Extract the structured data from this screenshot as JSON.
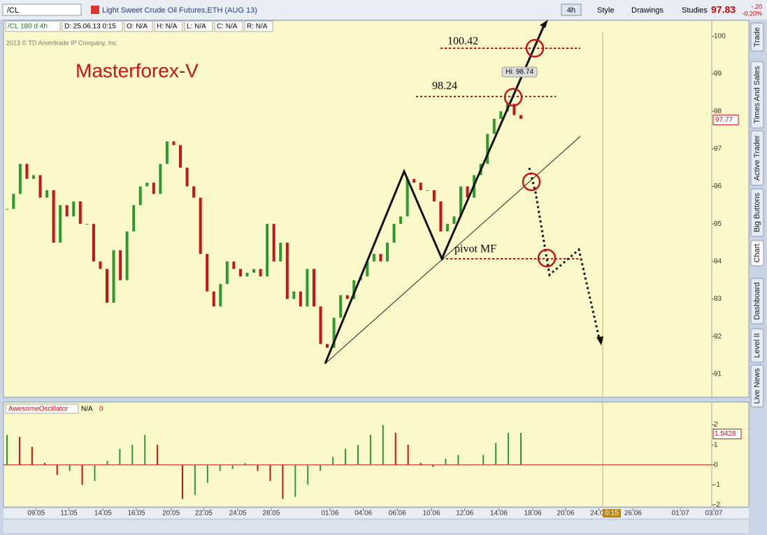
{
  "toolbar": {
    "symbol": "/CL",
    "description": "Light Sweet Crude Oil Futures,ETH (AUG 13)",
    "aggregation": "4h",
    "style": "Style",
    "drawings": "Drawings",
    "studies": "Studies",
    "last": "97.83",
    "change": "-.20",
    "change_pct": "-0.20%"
  },
  "info_bar": [
    "/CL 180 d 4h",
    "D: 25.06.13 0:15",
    "O: N/A",
    "H: N/A",
    "L: N/A",
    "C: N/A",
    "R: N/A"
  ],
  "side_tabs": [
    "Trade",
    "Times And Sales",
    "Active Trader",
    "Big Buttons",
    "Chart",
    "Dashboard",
    "Level II",
    "Live News"
  ],
  "chart_data": [
    {
      "type": "candlestick",
      "copyright": "2013 © TD Ameritrade IP Company, Inc.",
      "watermark": "Masterforex-V",
      "annotations": [
        "100.42",
        "98.24",
        "pivot MF",
        "Hi: 98.74"
      ],
      "closes": [
        95.4,
        95.8,
        96.6,
        96.2,
        96.3,
        95.7,
        95.9,
        94.5,
        95.5,
        95.2,
        95.6,
        95.0,
        95.0,
        94.0,
        93.8,
        92.9,
        94.3,
        93.5,
        94.8,
        95.5,
        96.0,
        96.1,
        95.8,
        96.6,
        97.2,
        97.1,
        96.5,
        96.0,
        95.7,
        94.2,
        93.2,
        92.8,
        93.4,
        94.0,
        93.8,
        93.6,
        93.7,
        93.8,
        93.6,
        95.0,
        94.0,
        94.5,
        93.0,
        93.2,
        92.8,
        93.8,
        92.8,
        91.8,
        91.7,
        92.5,
        93.1,
        93.0,
        93.5,
        93.6,
        94.0,
        94.2,
        94.0,
        94.5,
        95.0,
        95.2,
        96.2,
        96.1,
        95.9,
        95.9,
        95.6,
        94.8,
        95.0,
        95.2,
        96.0,
        95.7,
        96.3,
        96.6,
        97.4,
        97.8,
        98.0,
        98.2,
        97.9,
        97.8
      ],
      "up_color": "#2e9a2e",
      "down_color": "#c01818",
      "last_price": 97.77,
      "xlim": [
        -0.5,
        105.6
      ],
      "xticks": [
        {
          "value": 4.4,
          "label": "09.05"
        },
        {
          "value": 9.3,
          "label": "11.05"
        },
        {
          "value": 14.4,
          "label": "14.05"
        },
        {
          "value": 19.4,
          "label": "16.05"
        },
        {
          "value": 24.6,
          "label": "20.05"
        },
        {
          "value": 29.5,
          "label": "22.05"
        },
        {
          "value": 34.6,
          "label": "24.05"
        },
        {
          "value": 39.6,
          "label": "28.05"
        },
        {
          "value": 48.4,
          "label": "01.06"
        },
        {
          "value": 53.4,
          "label": "04.06"
        },
        {
          "value": 58.5,
          "label": "06.06"
        },
        {
          "value": 63.6,
          "label": "10.06"
        },
        {
          "value": 68.6,
          "label": "12.06"
        },
        {
          "value": 73.7,
          "label": "14.06"
        },
        {
          "value": 78.8,
          "label": "18.06"
        },
        {
          "value": 83.7,
          "label": "20.06"
        },
        {
          "value": 88.7,
          "label": "24.06"
        },
        {
          "value": 93.8,
          "label": "26.06"
        },
        {
          "value": 100.9,
          "label": "01.07"
        },
        {
          "value": 105.9,
          "label": "03.07"
        }
      ],
      "time_marker": "0:15",
      "ylim": [
        90.4,
        100.11
      ],
      "yticks": [
        91,
        92,
        93,
        94,
        95,
        96,
        97,
        98,
        99,
        100
      ]
    },
    {
      "type": "histogram",
      "title": "AwesomeOscillator",
      "status": "N/A",
      "param": "0",
      "values": [
        1.5,
        1.4,
        0.9,
        0.1,
        -0.5,
        -0.3,
        -1.0,
        -0.8,
        0.2,
        0.8,
        1.0,
        1.5,
        1.0,
        0.0,
        -1.7,
        -1.5,
        -0.9,
        -0.3,
        -0.2,
        0.1,
        -0.3,
        -0.8,
        -1.7,
        -1.6,
        -1.0,
        -0.3,
        0.4,
        0.8,
        1.0,
        1.5,
        2.0,
        1.6,
        1.0,
        0.1,
        -0.1,
        0.3,
        0.5,
        0.0,
        0.5,
        1.1,
        1.6,
        1.6
      ],
      "up_color": "#2e9a2e",
      "down_color": "#c01818",
      "last_value": 1.5428,
      "ylim": [
        -2.07,
        3.1
      ],
      "yticks": [
        -2,
        -1,
        0,
        1,
        2
      ]
    }
  ]
}
